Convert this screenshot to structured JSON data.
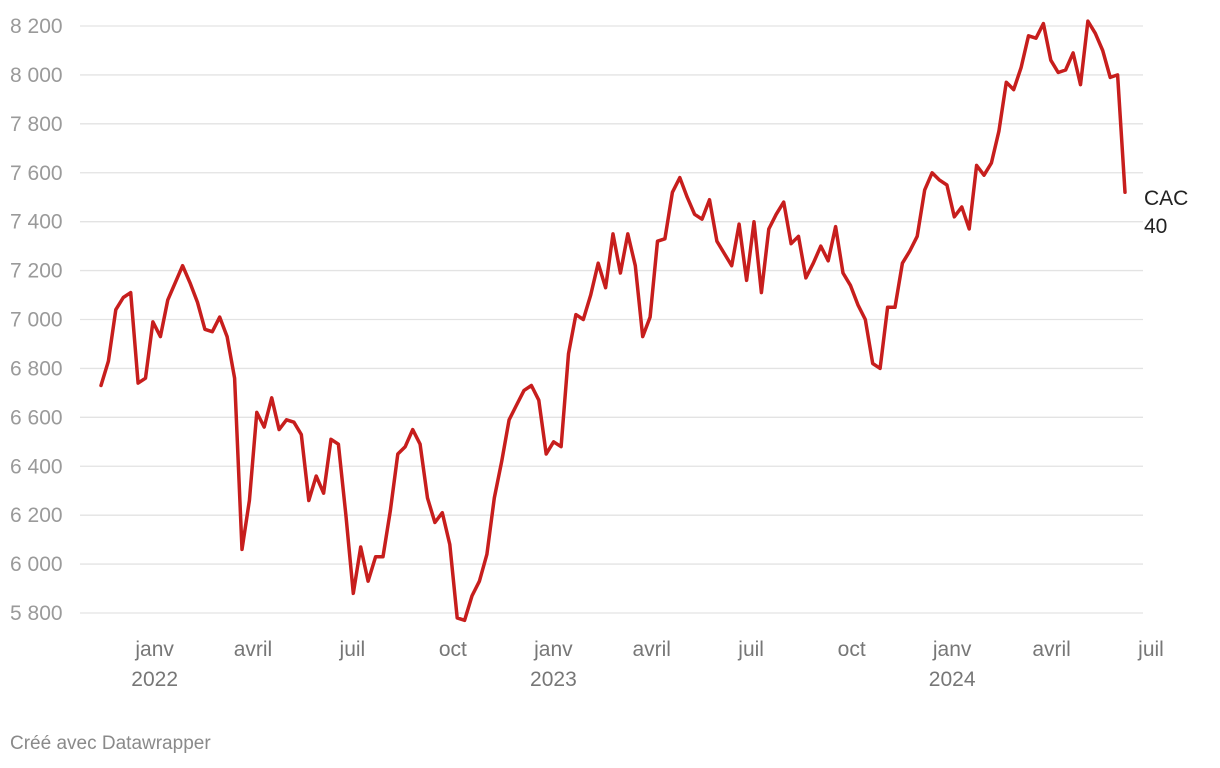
{
  "chart_data": {
    "type": "line",
    "ylim": [
      5800,
      8200
    ],
    "yticks": [
      5800,
      6000,
      6200,
      6400,
      6600,
      6800,
      7000,
      7200,
      7400,
      7600,
      7800,
      8000,
      8200
    ],
    "ytick_labels": [
      "5 800",
      "6 000",
      "6 200",
      "6 400",
      "6 600",
      "6 800",
      "7 000",
      "7 200",
      "7 400",
      "7 600",
      "7 800",
      "8 000",
      "8 200"
    ],
    "grid": true,
    "xticks": [
      {
        "date": "2022-01-01",
        "label": "janv",
        "label2": "2022"
      },
      {
        "date": "2022-04-01",
        "label": "avril",
        "label2": ""
      },
      {
        "date": "2022-07-01",
        "label": "juil",
        "label2": ""
      },
      {
        "date": "2022-10-01",
        "label": "oct",
        "label2": ""
      },
      {
        "date": "2023-01-01",
        "label": "janv",
        "label2": "2023"
      },
      {
        "date": "2023-04-01",
        "label": "avril",
        "label2": ""
      },
      {
        "date": "2023-07-01",
        "label": "juil",
        "label2": ""
      },
      {
        "date": "2023-10-01",
        "label": "oct",
        "label2": ""
      },
      {
        "date": "2024-01-01",
        "label": "janv",
        "label2": "2024"
      },
      {
        "date": "2024-04-01",
        "label": "avril",
        "label2": ""
      },
      {
        "date": "2024-07-01",
        "label": "juil",
        "label2": ""
      }
    ],
    "series": [
      {
        "name": "CAC 40",
        "color": "#c71e1d",
        "start_date": "2021-11-01",
        "interval": "weekly",
        "values": [
          6730,
          6830,
          7040,
          7090,
          7110,
          6740,
          6760,
          6990,
          6930,
          7080,
          7150,
          7220,
          7150,
          7070,
          6960,
          6950,
          7010,
          6930,
          6760,
          6060,
          6260,
          6620,
          6560,
          6680,
          6550,
          6590,
          6580,
          6530,
          6260,
          6360,
          6290,
          6510,
          6490,
          6200,
          5880,
          6070,
          5930,
          6030,
          6030,
          6220,
          6450,
          6480,
          6550,
          6490,
          6270,
          6170,
          6210,
          6080,
          5780,
          5770,
          5870,
          5930,
          6040,
          6270,
          6420,
          6590,
          6650,
          6710,
          6730,
          6670,
          6450,
          6500,
          6480,
          6860,
          7020,
          7000,
          7100,
          7230,
          7130,
          7350,
          7190,
          7350,
          7220,
          6930,
          7010,
          7320,
          7330,
          7520,
          7580,
          7500,
          7430,
          7410,
          7490,
          7320,
          7270,
          7220,
          7390,
          7160,
          7400,
          7110,
          7370,
          7430,
          7480,
          7310,
          7340,
          7170,
          7230,
          7300,
          7240,
          7380,
          7190,
          7140,
          7060,
          7000,
          6820,
          6800,
          7050,
          7050,
          7230,
          7280,
          7340,
          7530,
          7600,
          7570,
          7550,
          7420,
          7460,
          7370,
          7630,
          7590,
          7640,
          7770,
          7970,
          7940,
          8030,
          8160,
          8150,
          8210,
          8060,
          8010,
          8020,
          8090,
          7960,
          8220,
          8170,
          8100,
          7990,
          8000,
          7520
        ]
      }
    ],
    "series_label_lines": [
      "CAC",
      "40"
    ],
    "credit": "Créé avec Datawrapper"
  }
}
